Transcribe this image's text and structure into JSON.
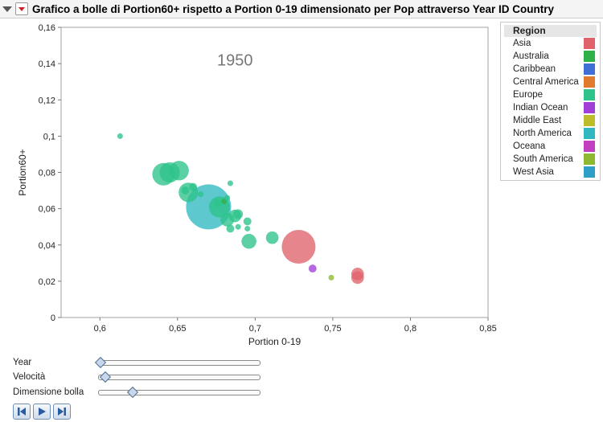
{
  "title": "Grafico a bolle di Portion60+  rispetto a Portion 0-19 dimensionato per Pop attraverso Year ID Country",
  "chart_data": {
    "type": "scatter",
    "subtype": "bubble",
    "title": "",
    "annotation": "1950",
    "xlabel": "Portion 0-19",
    "ylabel": "Portion60+",
    "xlim": [
      0.575,
      0.85
    ],
    "ylim": [
      0,
      0.16
    ],
    "x_ticks": [
      "0,6",
      "0,65",
      "0,7",
      "0,75",
      "0,8",
      "0,85"
    ],
    "x_tick_values": [
      0.6,
      0.65,
      0.7,
      0.75,
      0.8,
      0.85
    ],
    "y_ticks": [
      "0",
      "0,02",
      "0,04",
      "0,06",
      "0,08",
      "0,1",
      "0,12",
      "0,14",
      "0,16"
    ],
    "y_tick_values": [
      0,
      0.02,
      0.04,
      0.06,
      0.08,
      0.1,
      0.12,
      0.14,
      0.16
    ],
    "grid": false,
    "legend_position": "right",
    "legend_title": "Region",
    "regions": [
      {
        "name": "Asia",
        "color": "#e0636b"
      },
      {
        "name": "Australia",
        "color": "#2fb14a"
      },
      {
        "name": "Caribbean",
        "color": "#3f6fd6"
      },
      {
        "name": "Central America",
        "color": "#e07a2c"
      },
      {
        "name": "Europe",
        "color": "#2dc38a"
      },
      {
        "name": "Indian Ocean",
        "color": "#a23fd6"
      },
      {
        "name": "Middle East",
        "color": "#bdbd2a"
      },
      {
        "name": "North America",
        "color": "#2fb8c0"
      },
      {
        "name": "Oceana",
        "color": "#c23fc0"
      },
      {
        "name": "South America",
        "color": "#8db82f"
      },
      {
        "name": "West Asia",
        "color": "#2ea0c8"
      }
    ],
    "points": [
      {
        "x": 0.613,
        "y": 0.1,
        "size": 1,
        "region": "Europe"
      },
      {
        "x": 0.641,
        "y": 0.079,
        "size": 16,
        "region": "Europe"
      },
      {
        "x": 0.645,
        "y": 0.08,
        "size": 13,
        "region": "Europe"
      },
      {
        "x": 0.651,
        "y": 0.081,
        "size": 12,
        "region": "Europe"
      },
      {
        "x": 0.655,
        "y": 0.07,
        "size": 2,
        "region": "Europe"
      },
      {
        "x": 0.66,
        "y": 0.072,
        "size": 2,
        "region": "Europe"
      },
      {
        "x": 0.657,
        "y": 0.069,
        "size": 12,
        "region": "Europe"
      },
      {
        "x": 0.665,
        "y": 0.068,
        "size": 1,
        "region": "Europe"
      },
      {
        "x": 0.67,
        "y": 0.061,
        "size": 64,
        "region": "North America"
      },
      {
        "x": 0.676,
        "y": 0.063,
        "size": 2,
        "region": "Europe"
      },
      {
        "x": 0.677,
        "y": 0.061,
        "size": 14,
        "region": "Europe"
      },
      {
        "x": 0.68,
        "y": 0.064,
        "size": 1,
        "region": "Australia"
      },
      {
        "x": 0.682,
        "y": 0.066,
        "size": 1,
        "region": "Europe"
      },
      {
        "x": 0.684,
        "y": 0.074,
        "size": 1,
        "region": "Europe"
      },
      {
        "x": 0.682,
        "y": 0.054,
        "size": 6,
        "region": "Europe"
      },
      {
        "x": 0.684,
        "y": 0.049,
        "size": 2,
        "region": "Europe"
      },
      {
        "x": 0.687,
        "y": 0.056,
        "size": 5,
        "region": "Europe"
      },
      {
        "x": 0.689,
        "y": 0.057,
        "size": 3,
        "region": "Europe"
      },
      {
        "x": 0.689,
        "y": 0.05,
        "size": 1,
        "region": "Europe"
      },
      {
        "x": 0.695,
        "y": 0.053,
        "size": 2,
        "region": "Europe"
      },
      {
        "x": 0.695,
        "y": 0.049,
        "size": 1,
        "region": "Europe"
      },
      {
        "x": 0.696,
        "y": 0.042,
        "size": 7,
        "region": "Europe"
      },
      {
        "x": 0.711,
        "y": 0.044,
        "size": 5,
        "region": "Europe"
      },
      {
        "x": 0.728,
        "y": 0.039,
        "size": 36,
        "region": "Asia"
      },
      {
        "x": 0.737,
        "y": 0.027,
        "size": 2,
        "region": "Indian Ocean"
      },
      {
        "x": 0.749,
        "y": 0.022,
        "size": 1,
        "region": "South America"
      },
      {
        "x": 0.766,
        "y": 0.024,
        "size": 5,
        "region": "Asia"
      },
      {
        "x": 0.766,
        "y": 0.022,
        "size": 5,
        "region": "Asia"
      }
    ]
  },
  "sliders": [
    {
      "label": "Year",
      "value": 0.0
    },
    {
      "label": "Velocità",
      "value": 0.03
    },
    {
      "label": "Dimensione bolla",
      "value": 0.2
    }
  ],
  "controls": [
    {
      "name": "step-back-button",
      "icon": "step-back-icon"
    },
    {
      "name": "play-button",
      "icon": "play-icon"
    },
    {
      "name": "step-forward-button",
      "icon": "step-forward-icon"
    }
  ]
}
